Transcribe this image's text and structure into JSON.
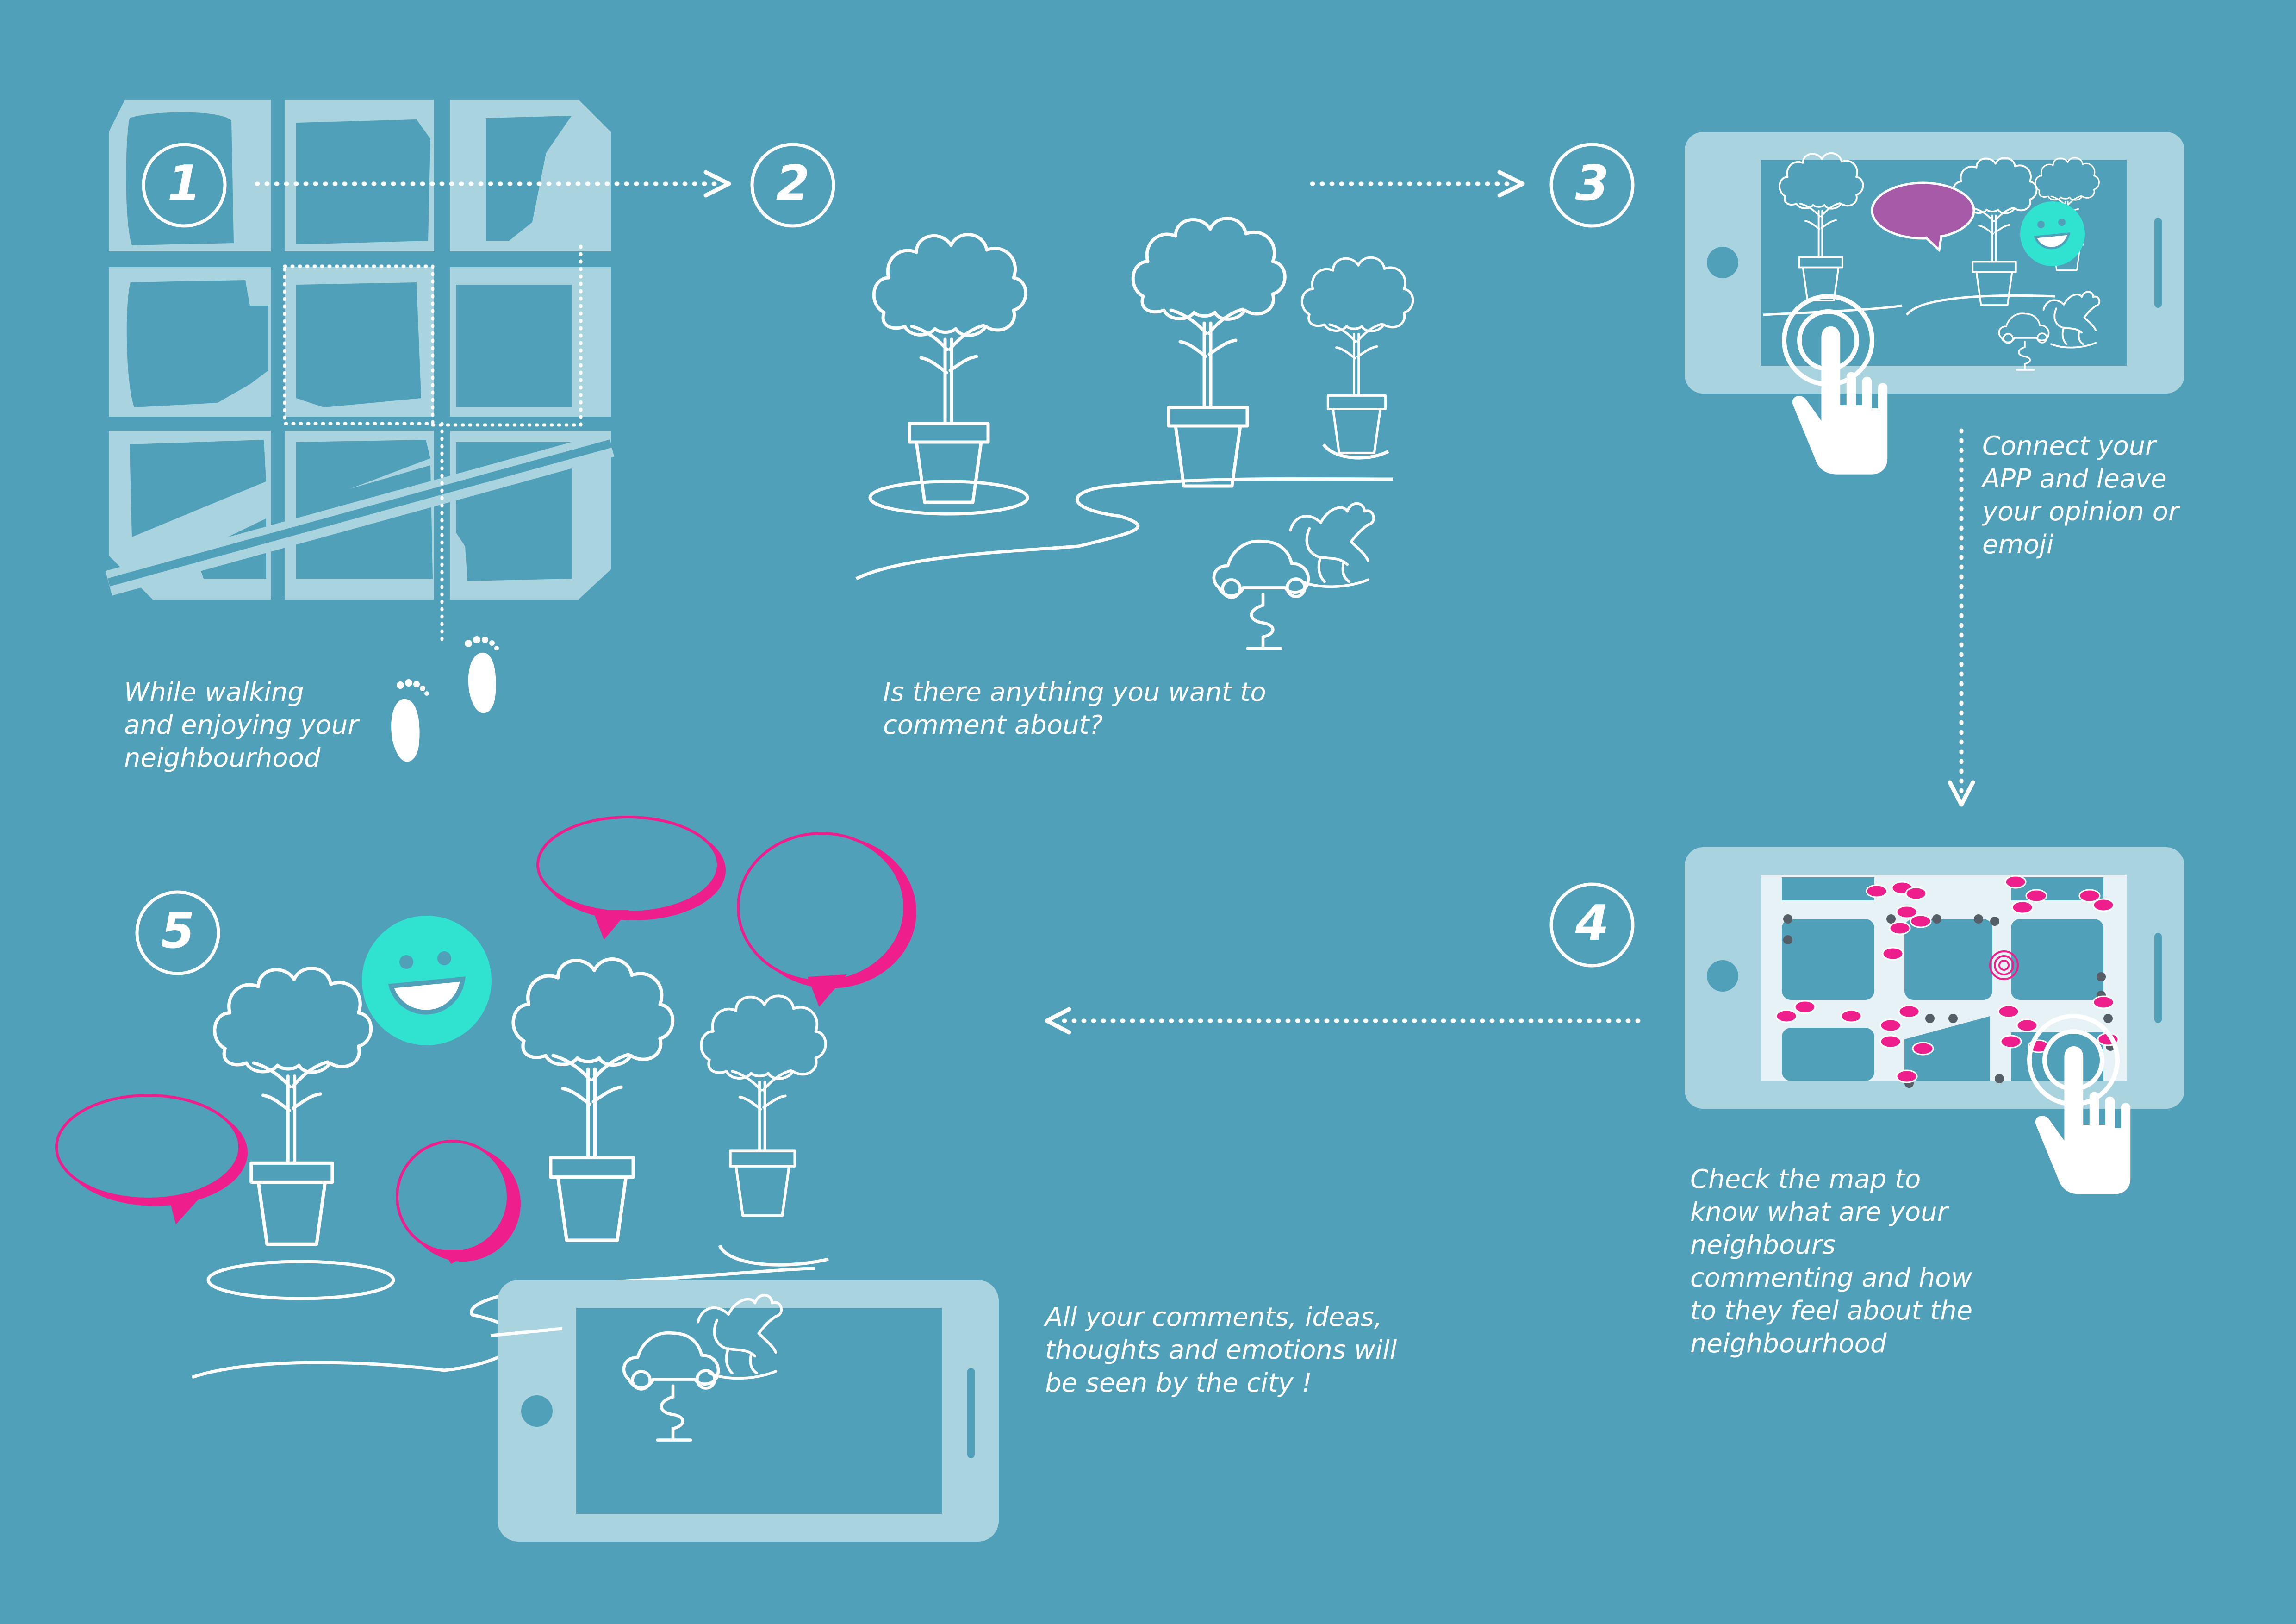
{
  "steps": [
    {
      "number": "1",
      "caption_lines": [
        "While walking",
        "and enjoying your",
        "neighbourhood"
      ]
    },
    {
      "number": "2",
      "caption_lines": [
        "Is there anything you want to",
        "comment about?"
      ]
    },
    {
      "number": "3",
      "caption_lines": [
        "Connect your",
        "APP and leave",
        "your opinion or",
        "emoji"
      ]
    },
    {
      "number": "4",
      "caption_lines": [
        "Check the map to",
        "know what  are your",
        "neighbours",
        "commenting and how",
        "to they feel about  the",
        "neighbourhood"
      ]
    },
    {
      "number": "5",
      "caption_lines": [
        "All your comments, ideas,",
        "thoughts  and emotions will",
        "be seen by the city !"
      ]
    }
  ],
  "colors": {
    "background": "#4fa0b8",
    "light": "#a9d3de",
    "white": "#ffffff",
    "magenta": "#ee1e8c",
    "purple": "#a65aa7",
    "cyan": "#2fe3d0"
  },
  "icons": [
    "map-icon",
    "footprints-icon",
    "tree-pot-icon",
    "rocking-horse-icon",
    "car-spring-rider-icon",
    "smartphone-icon",
    "tap-hand-icon",
    "speech-bubble-icon",
    "smiley-icon",
    "arrow-icon"
  ]
}
